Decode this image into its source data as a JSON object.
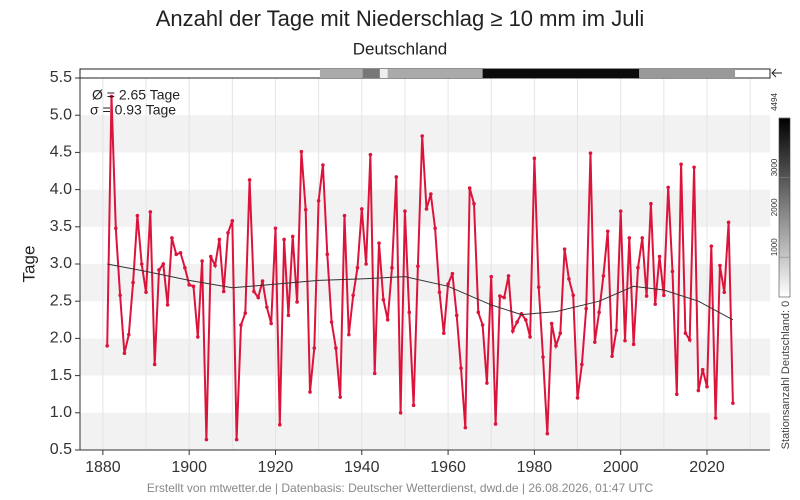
{
  "chart_data": {
    "type": "line",
    "title": "Anzahl der Tage mit Niederschlag ≥ 10 mm im Juli",
    "subtitle": "Deutschland",
    "y_label": "Tage",
    "annotations": [
      "Ø = 2.65 Tage",
      "σ = 0.93 Tage"
    ],
    "footer": "Erstellt von mtwetter.de | Datenbasis: Deutscher Wetterdienst, dwd.de | 26.08.2026, 01:47 UTC",
    "x": [
      1881,
      1882,
      1883,
      1884,
      1885,
      1886,
      1887,
      1888,
      1889,
      1890,
      1891,
      1892,
      1893,
      1894,
      1895,
      1896,
      1897,
      1898,
      1899,
      1900,
      1901,
      1902,
      1903,
      1904,
      1905,
      1906,
      1907,
      1908,
      1909,
      1910,
      1911,
      1912,
      1913,
      1914,
      1915,
      1916,
      1917,
      1918,
      1919,
      1920,
      1921,
      1922,
      1923,
      1924,
      1925,
      1926,
      1927,
      1928,
      1929,
      1930,
      1931,
      1932,
      1933,
      1934,
      1935,
      1936,
      1937,
      1938,
      1939,
      1940,
      1941,
      1942,
      1943,
      1944,
      1945,
      1946,
      1947,
      1948,
      1949,
      1950,
      1951,
      1952,
      1953,
      1954,
      1955,
      1956,
      1957,
      1958,
      1959,
      1960,
      1961,
      1962,
      1963,
      1964,
      1965,
      1966,
      1967,
      1968,
      1969,
      1970,
      1971,
      1972,
      1973,
      1974,
      1975,
      1976,
      1977,
      1978,
      1979,
      1980,
      1981,
      1982,
      1983,
      1984,
      1985,
      1986,
      1987,
      1988,
      1989,
      1990,
      1991,
      1992,
      1993,
      1994,
      1995,
      1996,
      1997,
      1998,
      1999,
      2000,
      2001,
      2002,
      2003,
      2004,
      2005,
      2006,
      2007,
      2008,
      2009,
      2010,
      2011,
      2012,
      2013,
      2014,
      2015,
      2016,
      2017,
      2018,
      2019,
      2020,
      2021,
      2022,
      2023,
      2024,
      2025,
      2026
    ],
    "series": [
      {
        "color": "#dc143c",
        "values": [
          1.9,
          5.25,
          3.48,
          2.58,
          1.8,
          2.05,
          2.75,
          3.65,
          3.0,
          2.62,
          3.7,
          1.65,
          2.92,
          3.0,
          2.45,
          3.35,
          3.13,
          3.15,
          2.95,
          2.72,
          2.7,
          2.02,
          3.04,
          0.64,
          3.1,
          2.98,
          3.33,
          2.63,
          3.42,
          3.58,
          0.64,
          2.18,
          2.34,
          4.13,
          2.63,
          2.55,
          2.77,
          2.42,
          2.2,
          3.48,
          0.84,
          3.33,
          2.31,
          3.37,
          2.49,
          4.51,
          3.73,
          1.28,
          1.87,
          3.85,
          4.33,
          3.13,
          2.22,
          1.87,
          1.21,
          3.65,
          2.05,
          2.58,
          2.95,
          3.74,
          3.0,
          4.47,
          1.53,
          3.28,
          2.52,
          2.25,
          2.95,
          4.17,
          1.0,
          3.71,
          2.35,
          1.1,
          2.97,
          4.72,
          3.74,
          3.94,
          3.48,
          2.62,
          2.07,
          2.73,
          2.87,
          2.31,
          1.6,
          0.8,
          4.02,
          3.81,
          2.35,
          2.18,
          1.4,
          2.83,
          0.85,
          2.57,
          2.55,
          2.84,
          2.1,
          2.22,
          2.33,
          2.25,
          2.02,
          4.42,
          2.69,
          1.75,
          0.72,
          2.2,
          1.9,
          2.07,
          3.2,
          2.8,
          2.58,
          1.2,
          1.65,
          2.4,
          4.49,
          1.95,
          2.35,
          2.84,
          3.44,
          1.76,
          2.11,
          3.71,
          1.97,
          3.35,
          1.92,
          2.95,
          3.35,
          2.57,
          3.81,
          2.46,
          3.1,
          2.58,
          4.03,
          2.9,
          1.25,
          4.34,
          2.07,
          1.98,
          4.3,
          1.3,
          1.58,
          1.35,
          3.24,
          0.93,
          2.98,
          2.62,
          3.56,
          1.13
        ]
      },
      {
        "color": "#333333",
        "x": [
          1881,
          1890,
          1900,
          1910,
          1920,
          1930,
          1940,
          1950,
          1960,
          1970,
          1977,
          1985,
          1995,
          2003,
          2010,
          2018,
          2026
        ],
        "values": [
          3.0,
          2.9,
          2.78,
          2.68,
          2.73,
          2.78,
          2.8,
          2.83,
          2.7,
          2.45,
          2.32,
          2.36,
          2.5,
          2.7,
          2.65,
          2.5,
          2.25
        ]
      }
    ],
    "xlim": [
      1874.7,
      2034.6
    ],
    "xticks": [
      1880,
      1900,
      1920,
      1940,
      1960,
      1980,
      2000,
      2020
    ],
    "xgrid_step": 10,
    "ylim": [
      0.5,
      5.5
    ],
    "yticks": [
      0.5,
      {
        "value": 1.0,
        "label": "1.0"
      },
      1.5,
      {
        "value": 2.0,
        "label": "2.0"
      },
      2.5,
      {
        "value": 3.0,
        "label": "3.0"
      },
      3.5,
      {
        "value": 4.0,
        "label": "4.0"
      },
      4.5,
      {
        "value": 5.0,
        "label": "5.0"
      },
      5.5
    ],
    "bands": true,
    "stations": [
      {
        "from": 1930.3,
        "to": 1940.2,
        "value": 1500
      },
      {
        "from": 1940.2,
        "to": 1944.2,
        "value": 2400
      },
      {
        "from": 1944.2,
        "to": 1946.0,
        "value": 300
      },
      {
        "from": 1946.0,
        "to": 1968.0,
        "value": 1500
      },
      {
        "from": 1968.0,
        "to": 2004.3,
        "value": 4300
      },
      {
        "from": 2004.3,
        "to": 2026.5,
        "value": 1800
      }
    ],
    "colorbar": {
      "lim": [
        0,
        4494
      ],
      "ticks": [
        1000,
        2000,
        3000,
        4494
      ],
      "label": "Stationsanzahl Deutschland: 0"
    }
  }
}
